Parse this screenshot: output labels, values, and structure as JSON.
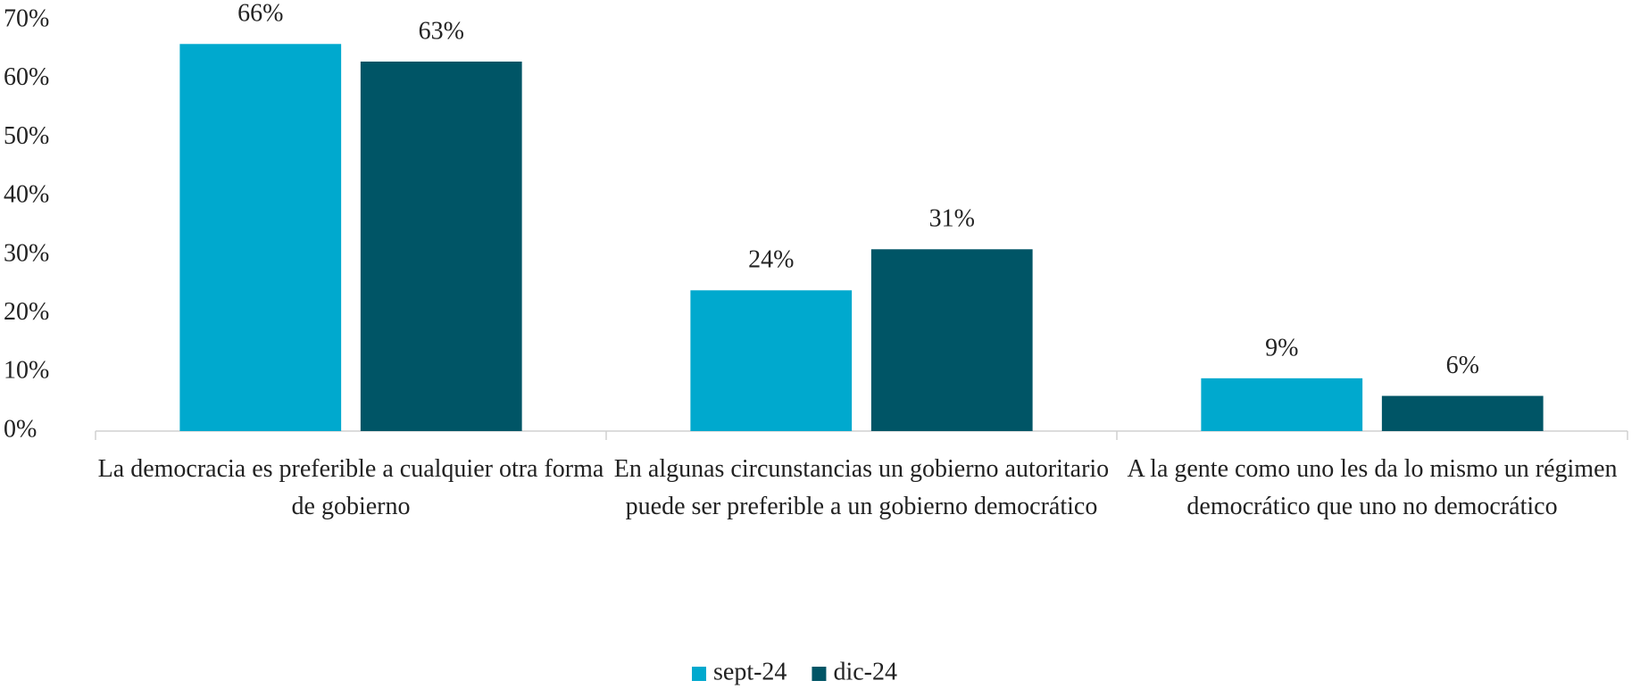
{
  "chart_data": {
    "type": "bar",
    "categories": [
      "La democracia es preferible a cualquier otra forma de gobierno",
      "En algunas circunstancias un gobierno autoritario puede ser preferible a un gobierno democrático",
      "A la gente como uno les da lo mismo un régimen democrático que uno no democrático"
    ],
    "series": [
      {
        "name": "sept-24",
        "color": "#00a9ce",
        "values": [
          66,
          24,
          9
        ],
        "value_labels": [
          "66%",
          "24%",
          "9%"
        ]
      },
      {
        "name": "dic-24",
        "color": "#005566",
        "values": [
          63,
          31,
          6
        ],
        "value_labels": [
          "63%",
          "31%",
          "6%"
        ]
      }
    ],
    "ylim": [
      0,
      70
    ],
    "yticks": [
      {
        "value": 0,
        "label": "0%"
      },
      {
        "value": 10,
        "label": "10%"
      },
      {
        "value": 20,
        "label": "20%"
      },
      {
        "value": 30,
        "label": "30%"
      },
      {
        "value": 40,
        "label": "40%"
      },
      {
        "value": 50,
        "label": "50%"
      },
      {
        "value": 60,
        "label": "60%"
      },
      {
        "value": 70,
        "label": "70%"
      }
    ],
    "grid": false,
    "legend": "bottom"
  }
}
